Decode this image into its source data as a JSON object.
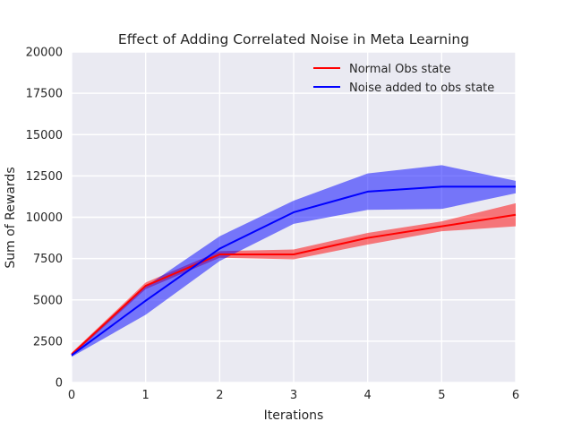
{
  "chart_data": {
    "type": "line",
    "title": "Effect of Adding Correlated Noise in Meta Learning",
    "xlabel": "Iterations",
    "ylabel": "Sum of Rewards",
    "xlim": [
      0,
      6
    ],
    "ylim": [
      0,
      20000
    ],
    "x_ticks": [
      "0",
      "1",
      "2",
      "3",
      "4",
      "5",
      "6"
    ],
    "y_ticks": [
      "0",
      "2500",
      "5000",
      "7500",
      "10000",
      "12500",
      "15000",
      "17500",
      "20000"
    ],
    "grid": true,
    "legend_position": "upper-right",
    "series": [
      {
        "name": "Normal Obs state",
        "color": "#ff0000",
        "x": [
          0,
          1,
          2,
          3,
          4,
          5,
          6
        ],
        "values": [
          1700,
          5850,
          7750,
          7750,
          8750,
          9450,
          10150
        ],
        "lower": [
          1600,
          5650,
          7550,
          7450,
          8350,
          9150,
          9450
        ],
        "upper": [
          1800,
          6050,
          7950,
          8050,
          9050,
          9750,
          10850
        ]
      },
      {
        "name": "Noise added to obs state",
        "color": "#0000ff",
        "x": [
          0,
          1,
          2,
          3,
          4,
          5,
          6
        ],
        "values": [
          1650,
          4950,
          8100,
          10300,
          11550,
          11850,
          11850
        ],
        "lower": [
          1550,
          4100,
          7350,
          9600,
          10450,
          10500,
          11450
        ],
        "upper": [
          1750,
          5800,
          8850,
          11000,
          12650,
          13150,
          12200
        ]
      }
    ]
  }
}
